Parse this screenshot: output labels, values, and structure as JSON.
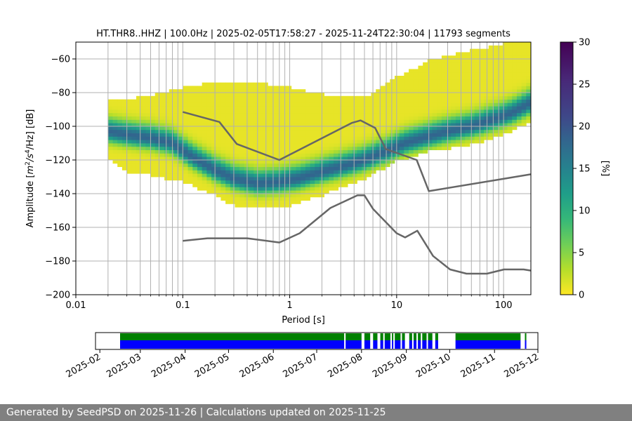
{
  "chart_data": [
    {
      "type": "heatmap",
      "title": "HT.THR8..HHZ | 100.0Hz | 2025-02-05T17:58:27 - 2025-11-24T22:30:04 | 11793 segments",
      "xlabel": "Period [s]",
      "ylabel_parts": {
        "prefix": "Amplitude [",
        "m": "m",
        "exp1": "2",
        "mid": "/s",
        "exp2": "4",
        "suffix": "/Hz] [dB]"
      },
      "x_scale": "log",
      "xlim": [
        0.01,
        180
      ],
      "ylim": [
        -200,
        -50
      ],
      "x_ticks": [
        0.01,
        0.1,
        1,
        10,
        100
      ],
      "x_tick_labels": [
        "0.01",
        "0.1",
        "1",
        "10",
        "100"
      ],
      "y_ticks": [
        -200,
        -180,
        -160,
        -140,
        -120,
        -100,
        -80,
        -60
      ],
      "y_tick_labels": [
        "−200",
        "−180",
        "−160",
        "−140",
        "−120",
        "−100",
        "−80",
        "−60"
      ],
      "grid": true,
      "colormap": "viridis_r",
      "colorbar": {
        "label": "[%]",
        "min": 0,
        "max": 30,
        "ticks": [
          0,
          5,
          10,
          15,
          20,
          25,
          30
        ],
        "tick_labels": [
          "0",
          "5",
          "10",
          "15",
          "20",
          "25",
          "30"
        ]
      },
      "density_mode": {
        "period": [
          0.02,
          0.03,
          0.05,
          0.08,
          0.12,
          0.2,
          0.3,
          0.5,
          0.8,
          1.2,
          2,
          3,
          5,
          8,
          12,
          20,
          30,
          50,
          80,
          120,
          180
        ],
        "db": [
          -103,
          -105,
          -107,
          -110,
          -118,
          -126,
          -131,
          -134,
          -133,
          -131,
          -127,
          -124,
          -120,
          -115,
          -110,
          -106,
          -103,
          -100,
          -96,
          -92,
          -86
        ]
      },
      "density_upper": {
        "period": [
          0.02,
          0.05,
          0.1,
          0.2,
          0.5,
          1,
          2,
          5,
          10,
          20,
          50,
          100,
          180
        ],
        "db": [
          -86,
          -83,
          -78,
          -75,
          -75,
          -78,
          -82,
          -84,
          -72,
          -62,
          -56,
          -52,
          -50
        ]
      },
      "density_lower": {
        "period": [
          0.02,
          0.03,
          0.05,
          0.1,
          0.2,
          0.3,
          0.5,
          1,
          2,
          5,
          10,
          20,
          50,
          100,
          180
        ],
        "db": [
          -118,
          -126,
          -128,
          -132,
          -140,
          -146,
          -148,
          -146,
          -140,
          -130,
          -120,
          -114,
          -110,
          -104,
          -96
        ]
      },
      "series": [
        {
          "role": "upper-noise-model",
          "period": [
            0.1,
            0.22,
            0.32,
            0.8,
            3.8,
            4.6,
            6.3,
            7.9,
            15.4,
            20,
            180
          ],
          "db": [
            -91.5,
            -97.4,
            -110.5,
            -120,
            -98,
            -96.5,
            -101,
            -113.5,
            -120,
            -138.5,
            -128.5
          ]
        },
        {
          "role": "lower-noise-model",
          "period": [
            0.1,
            0.17,
            0.4,
            0.8,
            1.24,
            2.4,
            4.3,
            5,
            6,
            10,
            12,
            15.6,
            21.9,
            31.6,
            45,
            70,
            101,
            154,
            180
          ],
          "db": [
            -168,
            -166.5,
            -166.5,
            -169,
            -163.5,
            -148.5,
            -141,
            -141,
            -149,
            -163.5,
            -166,
            -162,
            -177,
            -185,
            -187.5,
            -187.5,
            -185,
            -185,
            -185.7
          ]
        }
      ]
    },
    {
      "type": "timeline",
      "x_tick_labels": [
        "2025-02",
        "2025-03",
        "2025-04",
        "2025-05",
        "2025-06",
        "2025-07",
        "2025-08",
        "2025-09",
        "2025-10",
        "2025-11",
        "2025-12"
      ],
      "xlim_days": [
        -3,
        303
      ],
      "month_start_days": [
        0,
        28,
        59,
        89,
        120,
        150,
        181,
        212,
        242,
        273,
        303
      ],
      "colors": {
        "upper": "#008000",
        "lower": "#0000ff"
      },
      "coverage_days": [
        [
          14,
          169
        ],
        [
          170,
          181
        ],
        [
          183,
          187
        ],
        [
          189,
          192
        ],
        [
          194,
          196
        ],
        [
          197,
          201
        ],
        [
          202,
          203
        ],
        [
          204,
          208
        ],
        [
          209,
          211
        ],
        [
          214,
          216
        ],
        [
          217,
          219
        ],
        [
          220,
          222
        ],
        [
          223,
          226
        ],
        [
          227,
          230
        ],
        [
          232,
          234
        ],
        [
          246,
          291
        ],
        [
          294,
          295
        ]
      ]
    }
  ],
  "footer": {
    "text": "Generated by SeedPSD on 2025-11-26 | Calculations updated on 2025-11-25"
  }
}
